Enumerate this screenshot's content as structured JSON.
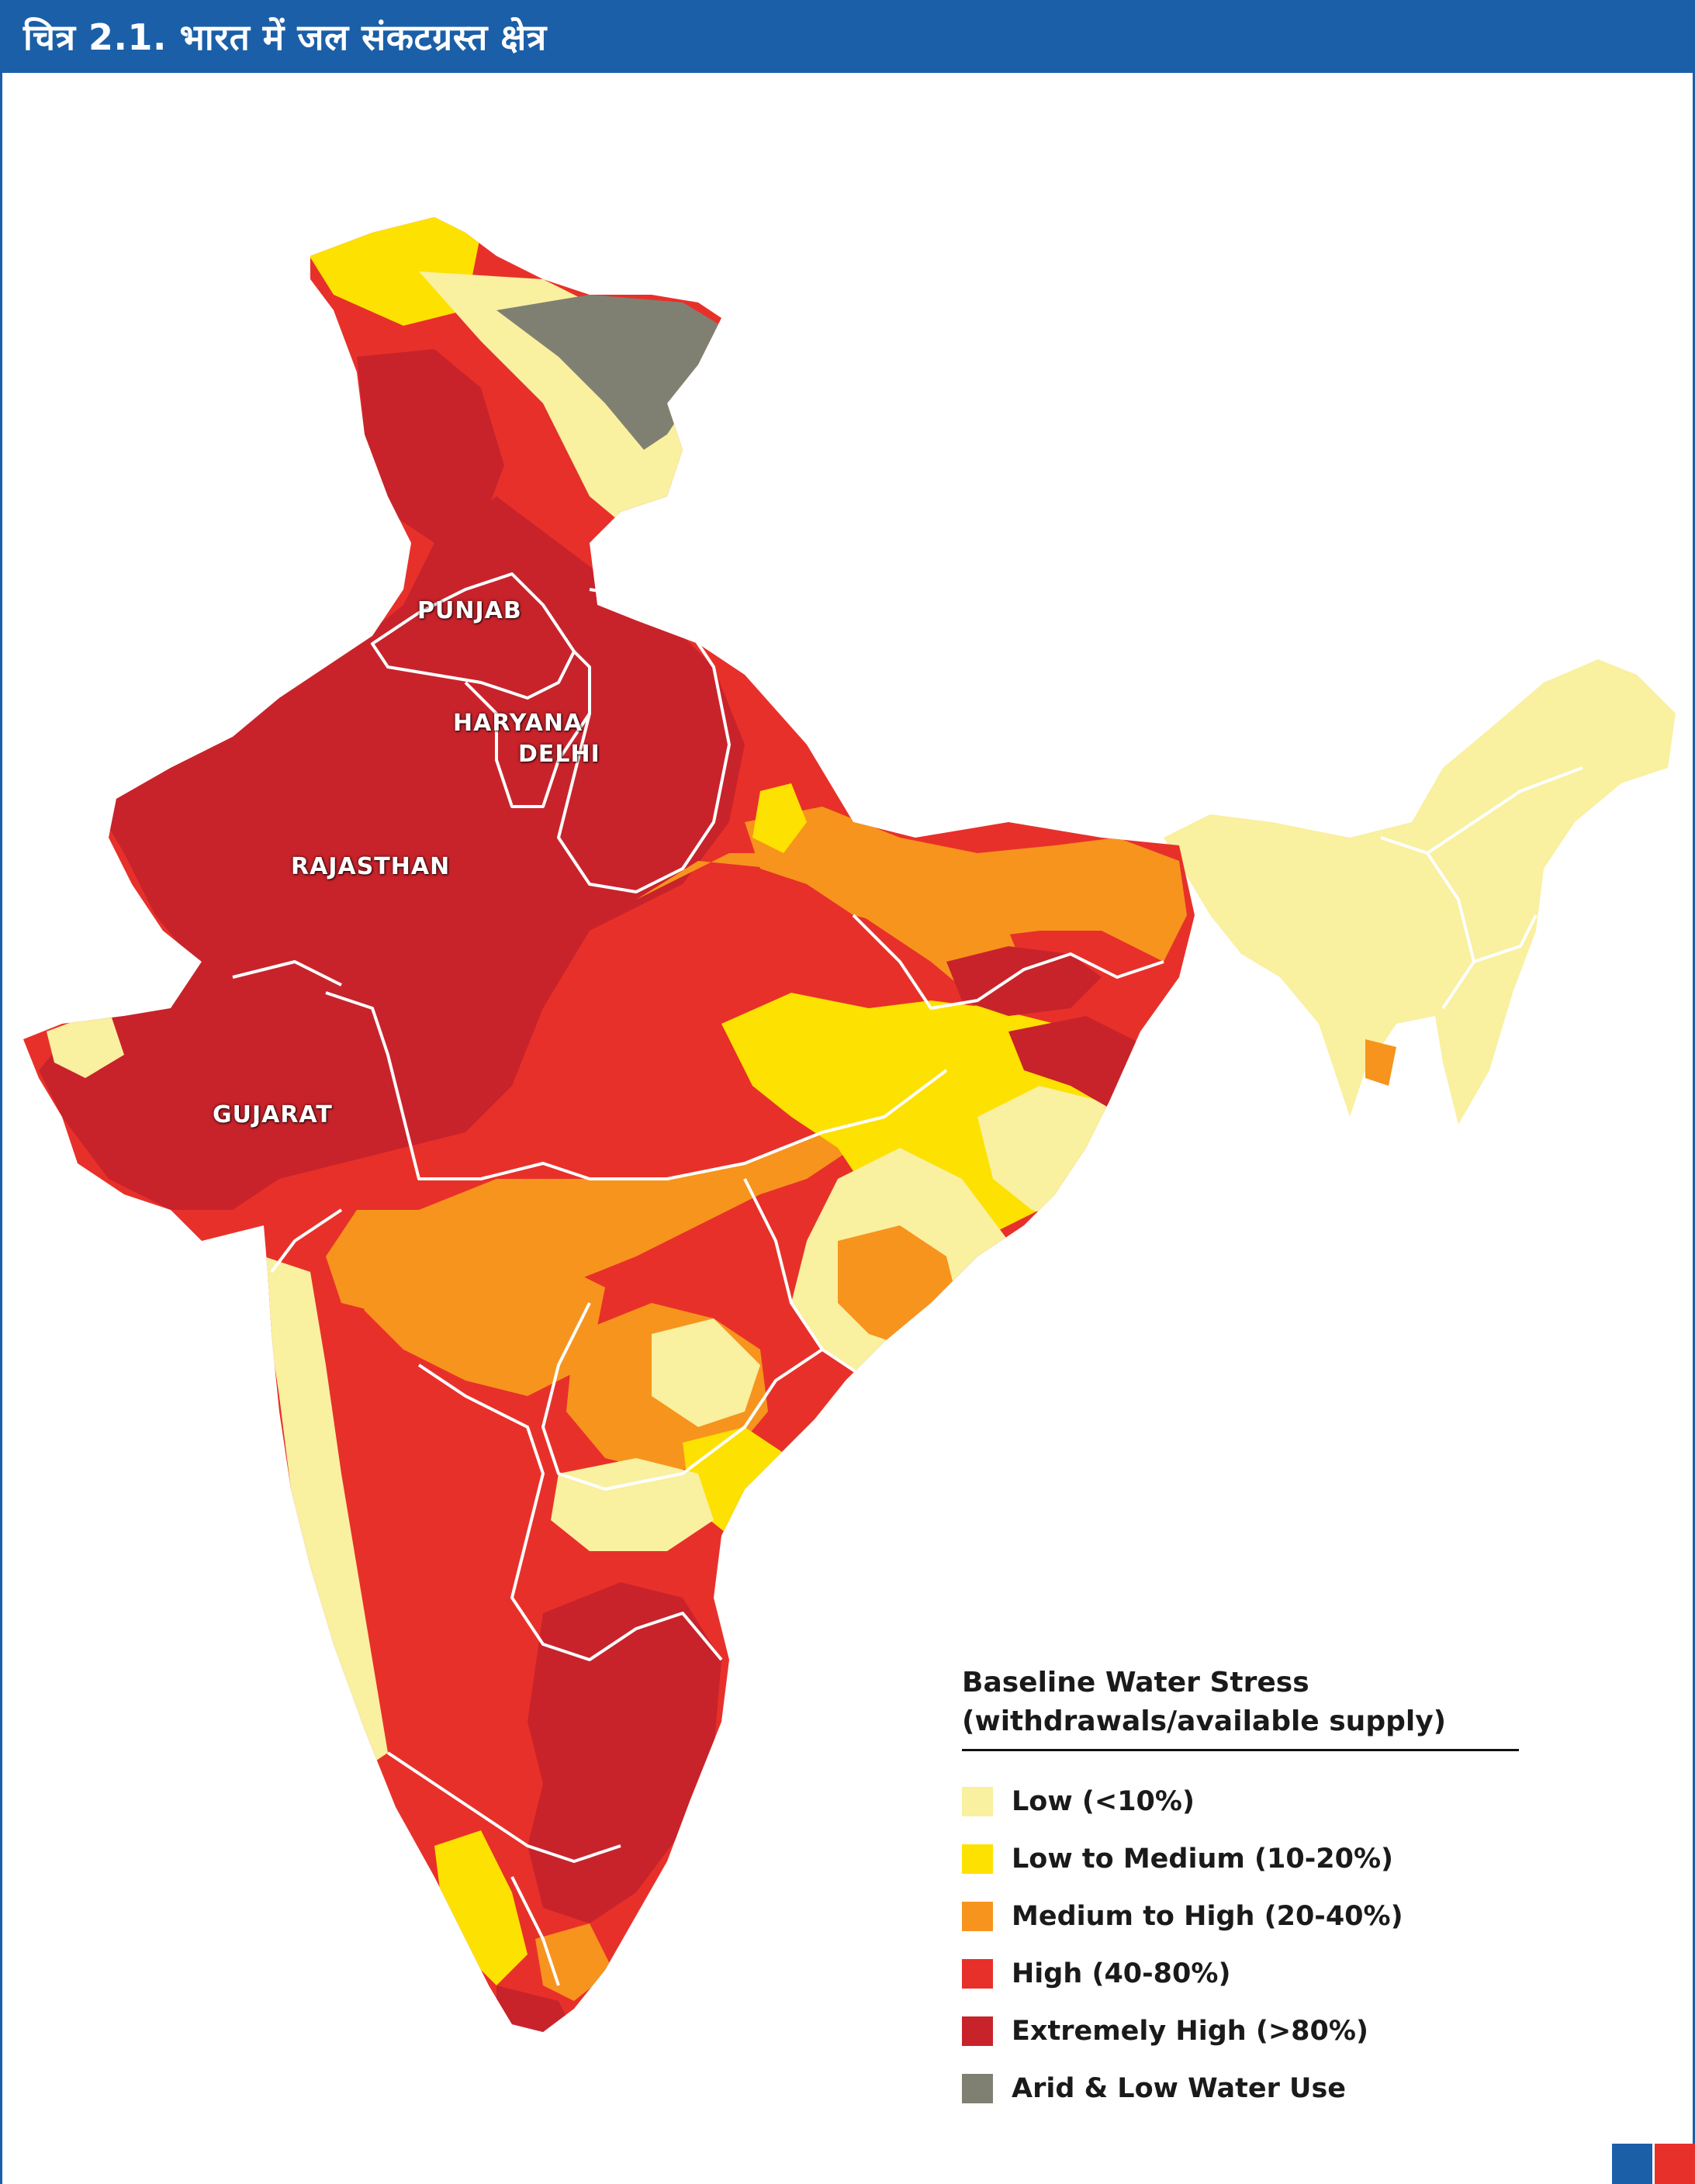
{
  "title": "चित्र 2.1. भारत में जल संकटग्रस्त क्षेत्र",
  "map_labels": {
    "punjab": "PUNJAB",
    "haryana": "HARYANA",
    "delhi": "DELHI",
    "rajasthan": "RAJASTHAN",
    "gujarat": "GUJARAT"
  },
  "legend": {
    "title_line1": "Baseline Water Stress",
    "title_line2": "(withdrawals/available supply)",
    "items": [
      {
        "label": "Low (<10%)",
        "color": "#f9f0a0"
      },
      {
        "label": "Low to Medium (10-20%)",
        "color": "#fde100"
      },
      {
        "label": "Medium to High (20-40%)",
        "color": "#f7941d"
      },
      {
        "label": "High (40-80%)",
        "color": "#e8302a"
      },
      {
        "label": "Extremely High (>80%)",
        "color": "#c8232b"
      },
      {
        "label": "Arid & Low Water Use",
        "color": "#808072"
      }
    ]
  },
  "colors": {
    "header": "#1b5fa8",
    "corner_blue": "#1b5fa8",
    "corner_red": "#e8302a"
  }
}
